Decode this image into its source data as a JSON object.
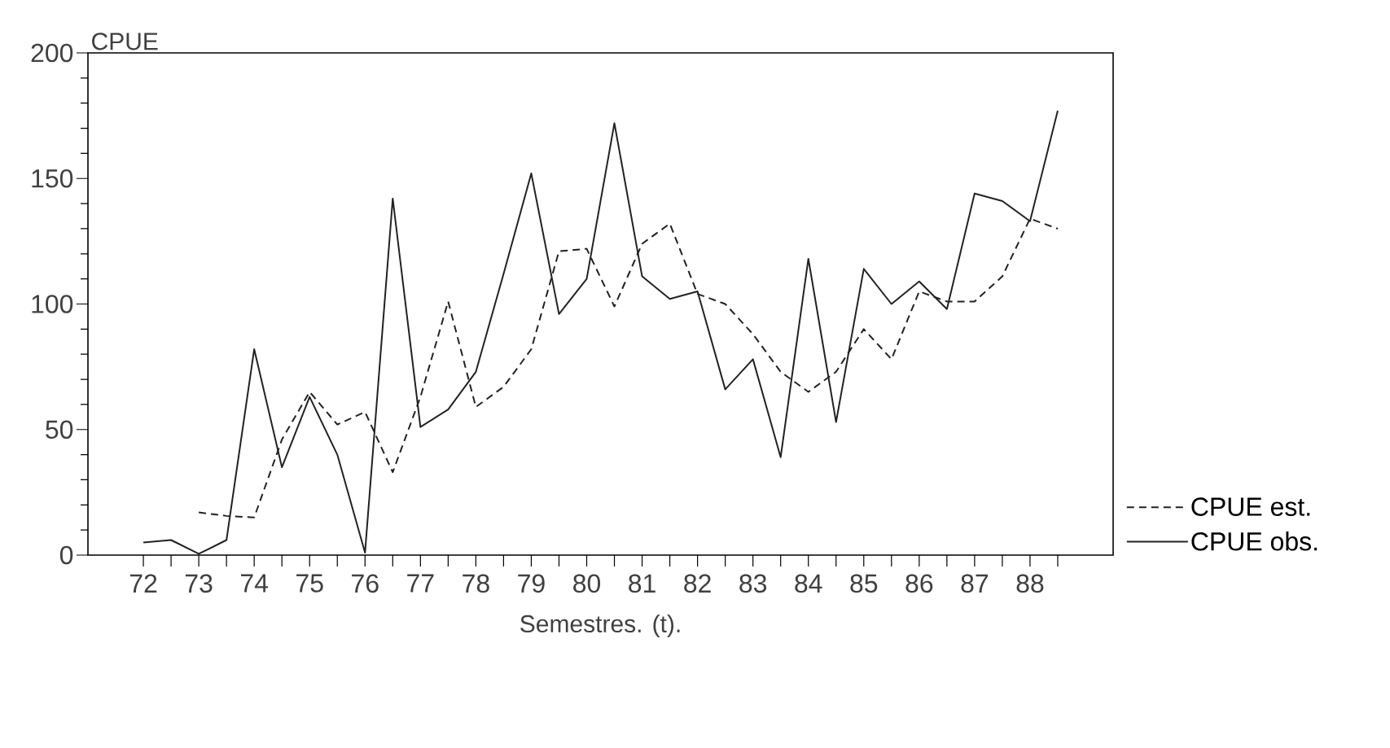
{
  "chart_data": {
    "type": "line",
    "xlabel": "Semestres. (t).",
    "ylabel": "CPUE",
    "x": [
      72,
      72.5,
      73,
      73.5,
      74,
      74.5,
      75,
      75.5,
      76,
      76.5,
      77,
      77.5,
      78,
      78.5,
      79,
      79.5,
      80,
      80.5,
      81,
      81.5,
      82,
      82.5,
      83,
      83.5,
      84,
      84.5,
      85,
      85.5,
      86,
      86.5,
      87,
      87.5,
      88,
      88.5
    ],
    "series": [
      {
        "name": "CPUE est.",
        "color": "#222222",
        "line_style": "dashed",
        "values": [
          null,
          null,
          17,
          15.6,
          15,
          46,
          65,
          52,
          57,
          33,
          63,
          101,
          59,
          67,
          82,
          121,
          122,
          99,
          124,
          132,
          104,
          100,
          88,
          73,
          65,
          73,
          90,
          78,
          105,
          101,
          101,
          111,
          134,
          130
        ]
      },
      {
        "name": "CPUE obs.",
        "color": "#222222",
        "line_style": "solid",
        "values": [
          5,
          6,
          0.5,
          6,
          82,
          35,
          63,
          40,
          1,
          142,
          51,
          58,
          73,
          112,
          152,
          96,
          110,
          172,
          111,
          102,
          105,
          66,
          78,
          39,
          118,
          53,
          114,
          100,
          109,
          98,
          144,
          141,
          133,
          177
        ]
      }
    ],
    "xlim": [
      71,
      89.5
    ],
    "xticks": [
      {
        "value": 72,
        "label": "72"
      },
      {
        "value": 72.5,
        "label": null
      },
      {
        "value": 73,
        "label": "73"
      },
      {
        "value": 73.5,
        "label": null
      },
      {
        "value": 74,
        "label": "74"
      },
      {
        "value": 74.5,
        "label": null
      },
      {
        "value": 75,
        "label": "75"
      },
      {
        "value": 75.5,
        "label": null
      },
      {
        "value": 76,
        "label": "76"
      },
      {
        "value": 76.5,
        "label": null
      },
      {
        "value": 77,
        "label": "77"
      },
      {
        "value": 77.5,
        "label": null
      },
      {
        "value": 78,
        "label": "78"
      },
      {
        "value": 78.5,
        "label": null
      },
      {
        "value": 79,
        "label": "79"
      },
      {
        "value": 79.5,
        "label": null
      },
      {
        "value": 80,
        "label": "80"
      },
      {
        "value": 80.5,
        "label": null
      },
      {
        "value": 81,
        "label": "81"
      },
      {
        "value": 81.5,
        "label": null
      },
      {
        "value": 82,
        "label": "82"
      },
      {
        "value": 82.5,
        "label": null
      },
      {
        "value": 83,
        "label": "83"
      },
      {
        "value": 83.5,
        "label": null
      },
      {
        "value": 84,
        "label": "84"
      },
      {
        "value": 84.5,
        "label": null
      },
      {
        "value": 85,
        "label": "85"
      },
      {
        "value": 85.5,
        "label": null
      },
      {
        "value": 86,
        "label": "86"
      },
      {
        "value": 86.5,
        "label": null
      },
      {
        "value": 87,
        "label": "87"
      },
      {
        "value": 87.5,
        "label": null
      },
      {
        "value": 88,
        "label": "88"
      },
      {
        "value": 88.5,
        "label": null
      }
    ],
    "ylim": [
      0,
      200
    ],
    "yticks": [
      0,
      50,
      100,
      150,
      200
    ],
    "legend": "bottom right"
  }
}
